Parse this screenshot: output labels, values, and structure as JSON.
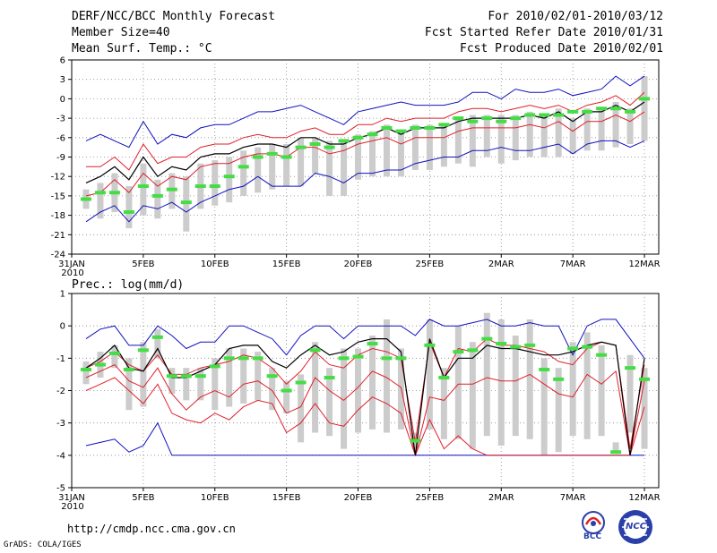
{
  "header": {
    "title": "DERF/NCC/BCC Monthly Forecast",
    "member_size": "Member Size=40",
    "variable": "Mean Surf. Temp.: °C",
    "period": "For 2010/02/01-2010/03/12",
    "started": "Fcst Started Refer Date 2010/01/31",
    "produced": "Fcst Produced Date 2010/02/01"
  },
  "footer": {
    "url": "http://cmdp.ncc.cma.gov.cn",
    "credit": "GrADS: COLA/IGES",
    "logo_bcc": "BCC",
    "logo_ncc": "NCC"
  },
  "colors": {
    "ensemble_bar": "#cccccc",
    "ensemble_mean": "#000000",
    "spread": "#e0202a",
    "extreme": "#1010c0",
    "median": "#44dd44"
  },
  "x_ticks": [
    "31JAN",
    "5FEB",
    "10FEB",
    "15FEB",
    "20FEB",
    "25FEB",
    "2MAR",
    "7MAR",
    "12MAR"
  ],
  "x_tick_days": [
    0,
    5,
    10,
    15,
    20,
    25,
    30,
    35,
    40
  ],
  "x_year": "2010",
  "chart_data": [
    {
      "type": "line",
      "title": "Mean Surf. Temp.: °C",
      "ylim": [
        -24,
        6
      ],
      "y_ticks": [
        6,
        3,
        0,
        -3,
        -6,
        -9,
        -12,
        -15,
        -18,
        -21,
        -24
      ],
      "x": [
        1,
        2,
        3,
        4,
        5,
        6,
        7,
        8,
        9,
        10,
        11,
        12,
        13,
        14,
        15,
        16,
        17,
        18,
        19,
        20,
        21,
        22,
        23,
        24,
        25,
        26,
        27,
        28,
        29,
        30,
        31,
        32,
        33,
        34,
        35,
        36,
        37,
        38,
        39,
        40
      ],
      "series": [
        {
          "name": "max",
          "values": [
            -6.5,
            -5.5,
            -6.5,
            -7.5,
            -3.5,
            -7,
            -5.5,
            -6,
            -4.5,
            -4,
            -4,
            -3,
            -2,
            -2,
            -1.5,
            -1,
            -2,
            -3,
            -4,
            -2,
            -1.5,
            -1,
            -0.5,
            -1,
            -1,
            -1,
            -0.5,
            1,
            1,
            0,
            1.5,
            1,
            1,
            1.5,
            0.5,
            1,
            1.5,
            3.5,
            2,
            3.5
          ]
        },
        {
          "name": "upper",
          "values": [
            -10.5,
            -10.5,
            -9,
            -11,
            -7,
            -10,
            -9,
            -9,
            -7.5,
            -7,
            -7,
            -6,
            -5.5,
            -6,
            -6,
            -5,
            -4.5,
            -5.5,
            -5.5,
            -4,
            -4,
            -3,
            -3.5,
            -3,
            -3,
            -3,
            -2,
            -1.5,
            -1.5,
            -2,
            -1.5,
            -1,
            -1.5,
            -1,
            -2,
            -1,
            -0.5,
            0.5,
            -1,
            1
          ]
        },
        {
          "name": "mean",
          "values": [
            -13,
            -12,
            -10.5,
            -12.5,
            -9,
            -12,
            -10.5,
            -11,
            -9,
            -8.5,
            -8.5,
            -7.5,
            -7,
            -7,
            -7.5,
            -6,
            -6,
            -7,
            -7,
            -6,
            -5.5,
            -4.5,
            -5.5,
            -4.5,
            -4.5,
            -4.5,
            -3.5,
            -3,
            -3,
            -3,
            -3,
            -2.5,
            -3,
            -2,
            -3.5,
            -2,
            -2,
            -1,
            -2,
            -0.5
          ]
        },
        {
          "name": "lower",
          "values": [
            -15,
            -14.5,
            -12.5,
            -14.5,
            -11.5,
            -13.5,
            -12,
            -12.5,
            -10.5,
            -10,
            -10,
            -9,
            -8.5,
            -8.5,
            -9,
            -7.5,
            -7.5,
            -8.5,
            -8,
            -7,
            -6.5,
            -6,
            -7,
            -6,
            -6,
            -6,
            -5,
            -4.5,
            -4.5,
            -4.5,
            -4.5,
            -4,
            -4.5,
            -3.5,
            -5,
            -3.5,
            -3.5,
            -2.5,
            -3.5,
            -2
          ]
        },
        {
          "name": "min",
          "values": [
            -19,
            -17.5,
            -16.5,
            -19,
            -16.5,
            -17,
            -16,
            -17.5,
            -16,
            -15,
            -14,
            -13.5,
            -12,
            -13.5,
            -13.5,
            -13.5,
            -11.5,
            -12,
            -13,
            -11.5,
            -11.5,
            -11,
            -11,
            -10,
            -9.5,
            -9,
            -9,
            -8,
            -8,
            -7.5,
            -8,
            -8,
            -7.5,
            -7,
            -8.5,
            -7,
            -6.5,
            -6.5,
            -7.5,
            -6.5
          ]
        },
        {
          "name": "median",
          "values": [
            -15.5,
            -14.5,
            -14.5,
            -17.5,
            -13.5,
            -15,
            -14,
            -16,
            -13.5,
            -13.5,
            -12,
            -10.5,
            -9,
            -8.5,
            -9,
            -7.5,
            -7,
            -7.5,
            -6.5,
            -6,
            -5.5,
            -4.5,
            -5,
            -4.5,
            -4.5,
            -4,
            -3,
            -3.5,
            -3,
            -3.5,
            -3,
            -2.5,
            -2.5,
            -2.5,
            -2,
            -2,
            -1.5,
            -1.5,
            -2,
            0
          ]
        },
        {
          "name": "bar_top",
          "values": [
            -14,
            -13,
            -11.5,
            -13.5,
            -10,
            -12.5,
            -11.5,
            -12,
            -10,
            -9.5,
            -9,
            -8,
            -7.5,
            -7,
            -7,
            -6,
            -6,
            -6.5,
            -6.5,
            -5.5,
            -5,
            -4,
            -5,
            -4,
            -4,
            -4,
            -3,
            -2.5,
            -2.5,
            -2.5,
            -2.5,
            -2,
            -2.5,
            -1.5,
            -3,
            -1.5,
            -1.5,
            -0.5,
            -1.5,
            3.5
          ]
        },
        {
          "name": "bar_bottom",
          "values": [
            -17,
            -18.5,
            -17.5,
            -20,
            -18,
            -18.5,
            -17,
            -20.5,
            -17,
            -16.5,
            -16,
            -15,
            -14.5,
            -14,
            -13.5,
            -13.5,
            -11.5,
            -15,
            -15,
            -12.5,
            -12,
            -12,
            -12,
            -11,
            -11,
            -10.5,
            -10,
            -10.5,
            -9,
            -10,
            -9.5,
            -9,
            -9,
            -9,
            -8.5,
            -8,
            -8,
            -7.5,
            -7,
            -6.5
          ]
        }
      ]
    },
    {
      "type": "line",
      "title": "Prec.: log(mm/d)",
      "ylim": [
        -5,
        1
      ],
      "y_ticks": [
        1,
        0,
        -1,
        -2,
        -3,
        -4,
        -5
      ],
      "x": [
        1,
        2,
        3,
        4,
        5,
        6,
        7,
        8,
        9,
        10,
        11,
        12,
        13,
        14,
        15,
        16,
        17,
        18,
        19,
        20,
        21,
        22,
        23,
        24,
        25,
        26,
        27,
        28,
        29,
        30,
        31,
        32,
        33,
        34,
        35,
        36,
        37,
        38,
        39,
        40
      ],
      "series": [
        {
          "name": "max",
          "values": [
            -0.4,
            -0.1,
            0,
            -0.6,
            -0.6,
            0,
            -0.3,
            -0.7,
            -0.5,
            -0.5,
            0,
            0,
            -0.2,
            -0.4,
            -0.9,
            -0.3,
            0,
            0,
            -0.4,
            0,
            0,
            0,
            0,
            -0.3,
            0.2,
            0,
            0,
            0.1,
            0.2,
            0,
            0,
            0.1,
            0,
            0,
            -0.9,
            0,
            0.2,
            0.2,
            -0.4,
            -1
          ]
        },
        {
          "name": "upper",
          "values": [
            -1.3,
            -1.1,
            -0.8,
            -1.2,
            -1.4,
            -0.9,
            -1.5,
            -1.5,
            -1.3,
            -1.2,
            -1.1,
            -0.9,
            -1,
            -1.3,
            -1.8,
            -1.4,
            -0.8,
            -1.2,
            -1.3,
            -0.9,
            -0.7,
            -0.8,
            -1,
            -3.6,
            -0.5,
            -1.6,
            -0.7,
            -0.8,
            -0.4,
            -0.6,
            -0.6,
            -0.7,
            -0.8,
            -1.1,
            -1.2,
            -0.7,
            -0.5,
            -0.6,
            -3.8,
            -1.2
          ]
        },
        {
          "name": "mean",
          "values": [
            -1.3,
            -1,
            -0.6,
            -1.3,
            -1.4,
            -0.7,
            -1.6,
            -1.6,
            -1.4,
            -1.2,
            -0.7,
            -0.6,
            -0.6,
            -1.1,
            -1.3,
            -0.9,
            -0.6,
            -0.9,
            -0.8,
            -0.5,
            -0.4,
            -0.4,
            -0.8,
            -4,
            -0.4,
            -1.6,
            -1,
            -1,
            -0.6,
            -0.7,
            -0.7,
            -0.8,
            -0.9,
            -0.9,
            -0.8,
            -0.6,
            -0.5,
            -0.6,
            -4,
            -1
          ]
        },
        {
          "name": "lower",
          "values": [
            -1.6,
            -1.4,
            -1.2,
            -1.7,
            -1.9,
            -1.3,
            -2.1,
            -2.6,
            -2.2,
            -2,
            -2.2,
            -1.8,
            -1.7,
            -2,
            -2.7,
            -2.5,
            -1.6,
            -2,
            -2.3,
            -1.9,
            -1.4,
            -1.6,
            -1.9,
            -4,
            -2.2,
            -2.3,
            -1.8,
            -1.8,
            -1.6,
            -1.7,
            -1.7,
            -1.5,
            -1.8,
            -2.1,
            -2.2,
            -1.5,
            -1.8,
            -1.4,
            -4,
            -1.7
          ]
        },
        {
          "name": "lowest",
          "values": [
            -2,
            -1.8,
            -1.6,
            -2,
            -2.4,
            -1.8,
            -2.7,
            -2.9,
            -3,
            -2.7,
            -2.9,
            -2.5,
            -2.3,
            -2.4,
            -3.3,
            -3,
            -2.4,
            -3,
            -3.1,
            -2.6,
            -2.2,
            -2.4,
            -2.7,
            -4,
            -2.9,
            -3.8,
            -3.4,
            -3.8,
            -4,
            -4,
            -4,
            -4,
            -4,
            -4,
            -4,
            -4,
            -4,
            -4,
            -4,
            -2.5
          ]
        },
        {
          "name": "min",
          "values": [
            -3.7,
            -3.6,
            -3.5,
            -3.9,
            -3.7,
            -3,
            -4,
            -4,
            -4,
            -4,
            -4,
            -4,
            -4,
            -4,
            -4,
            -4,
            -4,
            -4,
            -4,
            -4,
            -4,
            -4,
            -4,
            -4,
            -4,
            -4,
            -4,
            -4,
            -4,
            -4,
            -4,
            -4,
            -4,
            -4,
            -4,
            -4,
            -4,
            -4,
            -4,
            -4
          ]
        },
        {
          "name": "median",
          "values": [
            -1.35,
            -1.2,
            -0.85,
            -1.35,
            -0.75,
            -0.35,
            -1.55,
            -1.55,
            -1.55,
            -1.25,
            -1,
            -1,
            -1,
            -1.55,
            -2,
            -1.75,
            -0.75,
            -1.6,
            -1,
            -0.95,
            -0.55,
            -1,
            -1,
            -3.55,
            -0.6,
            -1.6,
            -0.8,
            -0.75,
            -0.4,
            -0.55,
            -0.65,
            -0.6,
            -1.35,
            -1.65,
            -0.7,
            -0.65,
            -0.9,
            -3.9,
            -1.3,
            -1.65
          ]
        },
        {
          "name": "bar_top",
          "values": [
            -1.1,
            -0.8,
            -0.6,
            -1,
            -0.5,
            -0.1,
            -1.3,
            -1.3,
            -1.3,
            -1,
            -0.7,
            -0.7,
            -0.8,
            -1.3,
            -1.7,
            -1.5,
            -0.5,
            -1.3,
            -0.7,
            -0.7,
            -0.3,
            0.2,
            -0.7,
            -3.3,
            0.2,
            -1.3,
            0,
            -0.5,
            0.4,
            0.2,
            -0.3,
            0.2,
            -1,
            -1.3,
            -0.5,
            -0.2,
            -0.6,
            -3.6,
            -0.9,
            -1.3
          ]
        },
        {
          "name": "bar_bottom",
          "values": [
            -1.8,
            -1.6,
            -1.3,
            -2.6,
            -2.5,
            -1,
            -2.1,
            -2.3,
            -2.3,
            -2.6,
            -2.5,
            -2.4,
            -2.3,
            -2.6,
            -2.7,
            -3.6,
            -3.3,
            -3.4,
            -3.8,
            -3.3,
            -3.2,
            -3.3,
            -3.2,
            -3.8,
            -3.2,
            -3.5,
            -3.5,
            -3.8,
            -3.4,
            -3.7,
            -3.4,
            -3.5,
            -4,
            -3.9,
            -3.4,
            -3.5,
            -3.4,
            -3.9,
            -3.3,
            -3.8
          ]
        }
      ]
    }
  ]
}
